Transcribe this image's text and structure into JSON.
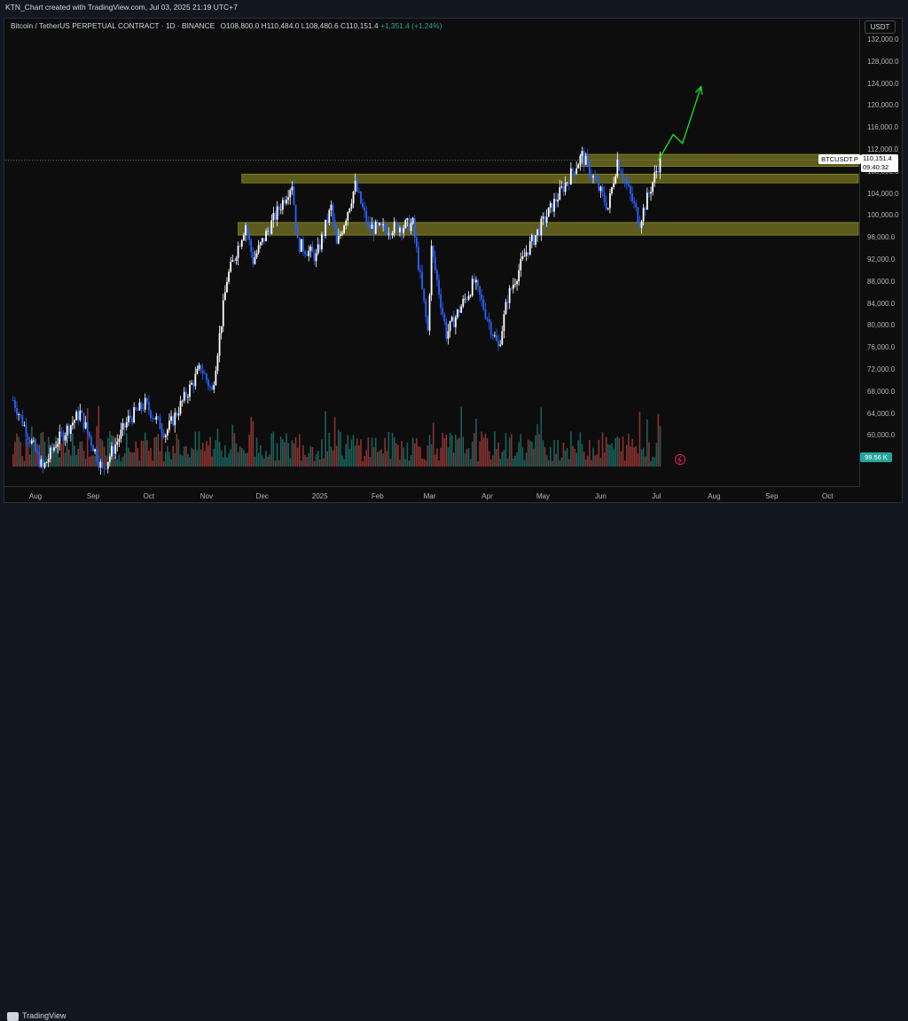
{
  "header": {
    "title": "KTN_Chart created with TradingView.com, Jul 03, 2025 21:19 UTC+7"
  },
  "legend": {
    "symbol": "Bitcoin / TetherUS PERPETUAL CONTRACT · 1D · BINANCE",
    "open_label": "O",
    "open": "108,800.0",
    "high_label": "H",
    "high": "110,484.0",
    "low_label": "L",
    "low": "108,480.6",
    "close_label": "C",
    "close": "110,151.4",
    "change": "+1,351.4 (+1.24%)"
  },
  "currency_badge": "USDT",
  "price_axis": [
    "132,000.0",
    "128,000.0",
    "124,000.0",
    "120,000.0",
    "116,000.0",
    "112,000.0",
    "108,000.0",
    "104,000.0",
    "100,000.0",
    "96,000.0",
    "92,000.0",
    "88,000.0",
    "84,000.0",
    "80,000.0",
    "76,000.0",
    "72,000.0",
    "68,000.0",
    "64,000.0",
    "60,000.0"
  ],
  "time_axis": [
    "Aug",
    "Sep",
    "Oct",
    "Nov",
    "Dec",
    "2025",
    "Feb",
    "Mar",
    "Apr",
    "May",
    "Jun",
    "Jul",
    "Aug",
    "Sep",
    "Oct"
  ],
  "last_price_tag": {
    "symbol": "BTCUSDT.P",
    "price": "110,151.4",
    "countdown": "09:40:32"
  },
  "volume_tag": "99.56 K",
  "footer": {
    "brand": "TradingView"
  },
  "colors": {
    "up": "#ffffff",
    "down": "#2962ff",
    "zone": "#6b6a1f",
    "arrow": "#22d622",
    "vol_up": "#26a69a",
    "vol_down": "#ef5350"
  },
  "chart_data": {
    "type": "candlestick",
    "instrument": "BTCUSDT.P",
    "interval": "1D",
    "ylim": [
      56000,
      134000
    ],
    "xlim": [
      "2024-07-15",
      "2025-10-15"
    ],
    "monthly_closes": [
      {
        "month": "2024-07",
        "close": 66000
      },
      {
        "month": "2024-08",
        "close": 58900
      },
      {
        "month": "2024-09",
        "close": 63300
      },
      {
        "month": "2024-10",
        "close": 70200
      },
      {
        "month": "2024-11",
        "close": 96400
      },
      {
        "month": "2024-12",
        "close": 93400
      },
      {
        "month": "2025-01",
        "close": 102400
      },
      {
        "month": "2025-02",
        "close": 84300
      },
      {
        "month": "2025-03",
        "close": 82500
      },
      {
        "month": "2025-04",
        "close": 94200
      },
      {
        "month": "2025-05",
        "close": 104600
      },
      {
        "month": "2025-06",
        "close": 107100
      },
      {
        "month": "2025-07",
        "close": 110151.4
      }
    ],
    "zones": [
      {
        "from": 109000,
        "to": 111200
      },
      {
        "from": 106000,
        "to": 107600
      },
      {
        "from": 96500,
        "to": 98800
      }
    ],
    "last_price": 110151.4,
    "projection_arrow": [
      {
        "date": "2025-07-02",
        "price": 110100
      },
      {
        "date": "2025-07-10",
        "price": 114800
      },
      {
        "date": "2025-07-15",
        "price": 113200
      },
      {
        "date": "2025-07-25",
        "price": 123500
      }
    ]
  }
}
